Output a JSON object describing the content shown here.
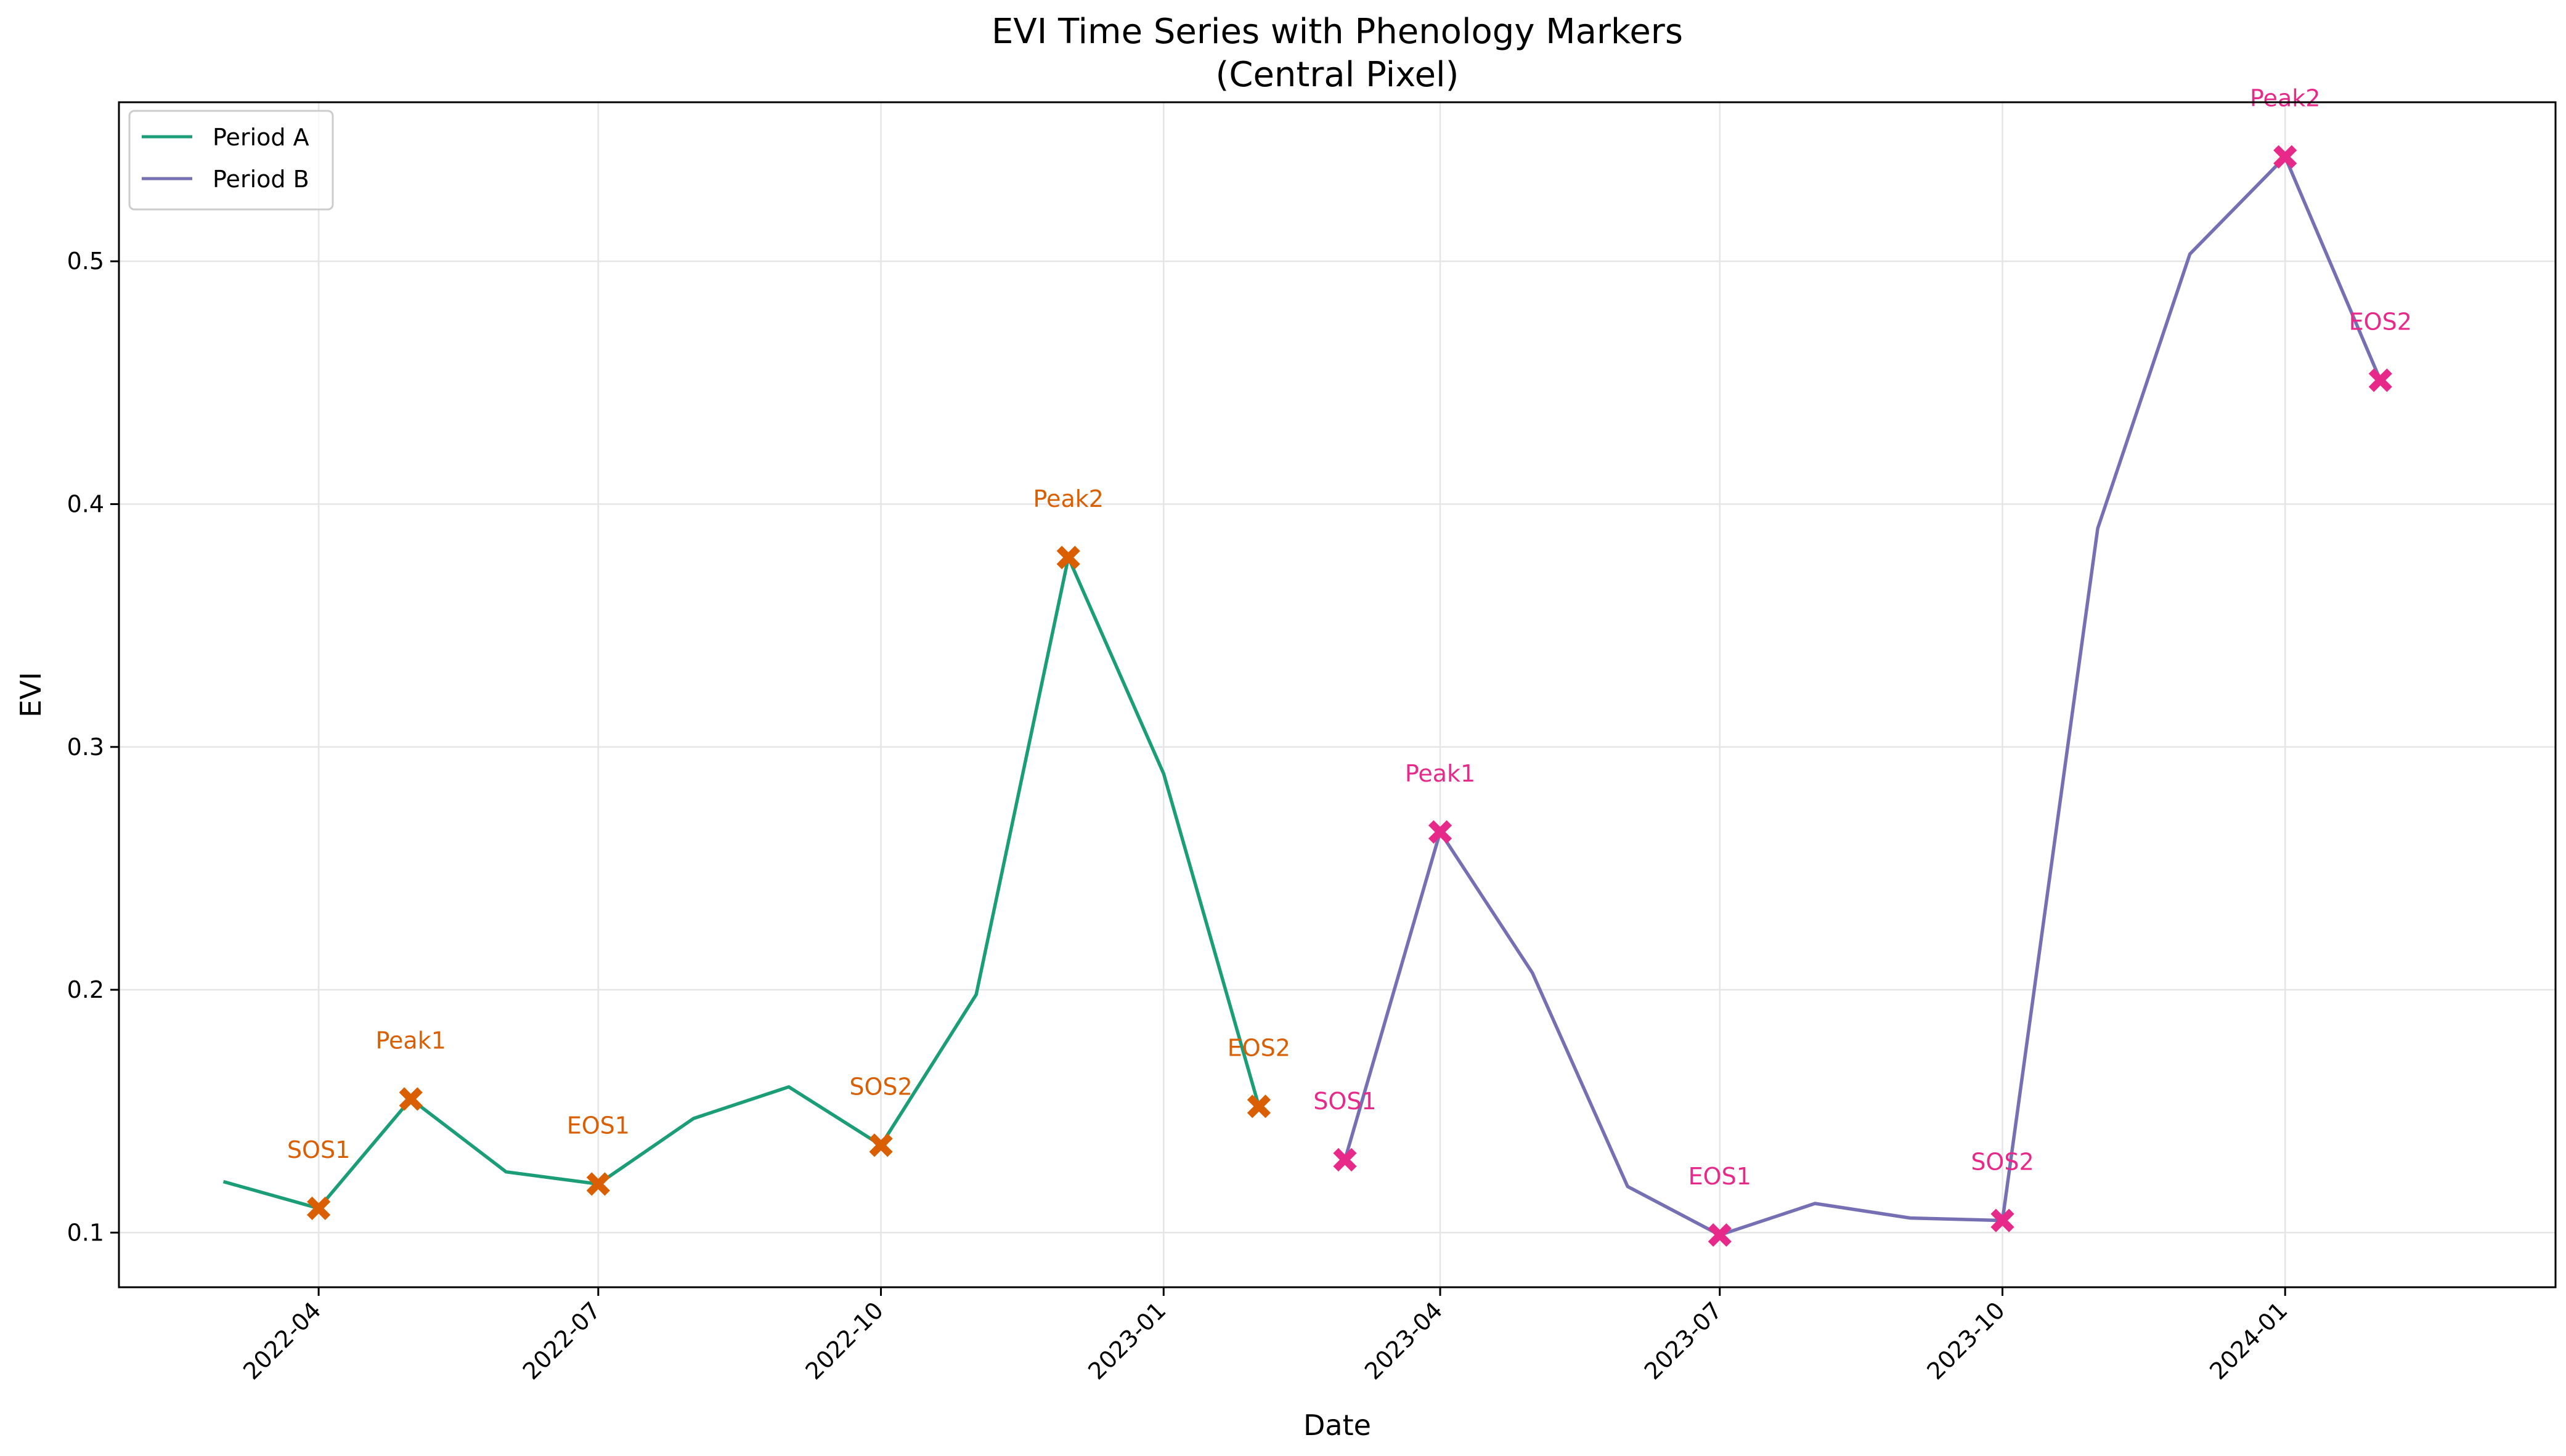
{
  "chart_data": {
    "type": "line",
    "title": "EVI Time Series with Phenology Markers",
    "subtitle": "(Central Pixel)",
    "xlabel": "Date",
    "ylabel": "EVI",
    "xlim": [
      "2022-01-26",
      "2024-03-29"
    ],
    "ylim": [
      0.0775,
      0.5655
    ],
    "grid": true,
    "legend_position": "upper-left",
    "x_ticks": [
      "2022-04",
      "2022-07",
      "2022-10",
      "2023-01",
      "2023-04",
      "2023-07",
      "2023-10",
      "2024-01"
    ],
    "y_ticks": [
      0.1,
      0.2,
      0.3,
      0.4,
      0.5
    ],
    "series": [
      {
        "name": "Period A",
        "color": "#1b9e77",
        "x": [
          "2022-03-01",
          "2022-04-01",
          "2022-05-01",
          "2022-06-01",
          "2022-07-01",
          "2022-08-01",
          "2022-09-01",
          "2022-10-01",
          "2022-11-01",
          "2022-12-01",
          "2023-01-01",
          "2023-02-01"
        ],
        "y": [
          0.121,
          0.11,
          0.155,
          0.125,
          0.12,
          0.147,
          0.16,
          0.136,
          0.198,
          0.378,
          0.289,
          0.152
        ]
      },
      {
        "name": "Period B",
        "color": "#7570b3",
        "x": [
          "2023-03-01",
          "2023-04-01",
          "2023-05-01",
          "2023-06-01",
          "2023-07-01",
          "2023-08-01",
          "2023-09-01",
          "2023-10-01",
          "2023-11-01",
          "2023-12-01",
          "2024-01-01",
          "2024-02-01"
        ],
        "y": [
          0.13,
          0.265,
          0.207,
          0.119,
          0.099,
          0.112,
          0.106,
          0.105,
          0.39,
          0.503,
          0.543,
          0.451
        ]
      }
    ],
    "markers": [
      {
        "series": "Period A",
        "color": "#d95f02",
        "points": [
          {
            "label": "SOS1",
            "x": "2022-04-01",
            "y": 0.11
          },
          {
            "label": "Peak1",
            "x": "2022-05-01",
            "y": 0.155
          },
          {
            "label": "EOS1",
            "x": "2022-07-01",
            "y": 0.12
          },
          {
            "label": "SOS2",
            "x": "2022-10-01",
            "y": 0.136
          },
          {
            "label": "Peak2",
            "x": "2022-12-01",
            "y": 0.378
          },
          {
            "label": "EOS2",
            "x": "2023-02-01",
            "y": 0.152
          }
        ]
      },
      {
        "series": "Period B",
        "color": "#e7298a",
        "points": [
          {
            "label": "SOS1",
            "x": "2023-03-01",
            "y": 0.13
          },
          {
            "label": "Peak1",
            "x": "2023-04-01",
            "y": 0.265
          },
          {
            "label": "EOS1",
            "x": "2023-07-01",
            "y": 0.099
          },
          {
            "label": "SOS2",
            "x": "2023-10-01",
            "y": 0.105
          },
          {
            "label": "Peak2",
            "x": "2024-01-01",
            "y": 0.543
          },
          {
            "label": "EOS2",
            "x": "2024-02-01",
            "y": 0.451
          }
        ]
      }
    ]
  }
}
